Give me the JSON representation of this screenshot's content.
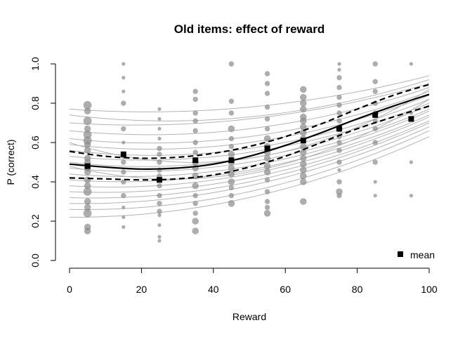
{
  "chart_data": {
    "type": "scatter",
    "title": "Old items: effect of reward",
    "xlabel": "Reward",
    "ylabel": "P (correct)",
    "xlim": [
      0,
      100
    ],
    "ylim": [
      0,
      1
    ],
    "xticks": [
      0,
      20,
      40,
      60,
      80,
      100
    ],
    "yticks": [
      0.0,
      0.2,
      0.4,
      0.6,
      0.8,
      1.0
    ],
    "ytick_labels": [
      "0.0",
      "0.2",
      "0.4",
      "0.6",
      "0.8",
      "1.0"
    ],
    "grid": false,
    "legend": {
      "position": "bottom-right",
      "entries": [
        {
          "label": "mean",
          "marker": "filled-square"
        }
      ]
    },
    "colors": {
      "points": "#8a8a8a",
      "subject_curves": "#b3b3b3",
      "fit": "#000000"
    },
    "means": {
      "x": [
        5,
        15,
        25,
        35,
        45,
        55,
        65,
        75,
        85,
        95
      ],
      "y": [
        0.48,
        0.54,
        0.41,
        0.51,
        0.51,
        0.57,
        0.61,
        0.67,
        0.74,
        0.72
      ]
    },
    "fit": {
      "x": [
        0,
        10,
        20,
        30,
        40,
        50,
        60,
        70,
        80,
        90,
        100
      ],
      "y": [
        0.49,
        0.475,
        0.465,
        0.47,
        0.49,
        0.53,
        0.585,
        0.65,
        0.72,
        0.785,
        0.845
      ]
    },
    "fit_upper": {
      "x": [
        0,
        10,
        20,
        30,
        40,
        50,
        60,
        70,
        80,
        90,
        100
      ],
      "y": [
        0.555,
        0.53,
        0.52,
        0.525,
        0.545,
        0.58,
        0.63,
        0.695,
        0.77,
        0.84,
        0.895
      ]
    },
    "fit_lower": {
      "x": [
        0,
        10,
        20,
        30,
        40,
        50,
        60,
        70,
        80,
        90,
        100
      ],
      "y": [
        0.42,
        0.415,
        0.41,
        0.415,
        0.435,
        0.475,
        0.53,
        0.6,
        0.67,
        0.73,
        0.785
      ]
    },
    "subject_curves": [
      {
        "x": [
          0,
          50,
          100
        ],
        "y": [
          0.77,
          0.78,
          0.94
        ]
      },
      {
        "x": [
          0,
          50,
          100
        ],
        "y": [
          0.74,
          0.73,
          0.92
        ]
      },
      {
        "x": [
          0,
          50,
          100
        ],
        "y": [
          0.7,
          0.72,
          0.9
        ]
      },
      {
        "x": [
          0,
          50,
          100
        ],
        "y": [
          0.66,
          0.67,
          0.88
        ]
      },
      {
        "x": [
          0,
          50,
          100
        ],
        "y": [
          0.62,
          0.63,
          0.86
        ]
      },
      {
        "x": [
          0,
          50,
          100
        ],
        "y": [
          0.59,
          0.6,
          0.84
        ]
      },
      {
        "x": [
          0,
          50,
          100
        ],
        "y": [
          0.56,
          0.57,
          0.82
        ]
      },
      {
        "x": [
          0,
          50,
          100
        ],
        "y": [
          0.53,
          0.55,
          0.8
        ]
      },
      {
        "x": [
          0,
          50,
          100
        ],
        "y": [
          0.5,
          0.52,
          0.79
        ]
      },
      {
        "x": [
          0,
          50,
          100
        ],
        "y": [
          0.47,
          0.5,
          0.77
        ]
      },
      {
        "x": [
          0,
          50,
          100
        ],
        "y": [
          0.44,
          0.48,
          0.76
        ]
      },
      {
        "x": [
          0,
          50,
          100
        ],
        "y": [
          0.41,
          0.46,
          0.74
        ]
      },
      {
        "x": [
          0,
          50,
          100
        ],
        "y": [
          0.38,
          0.44,
          0.73
        ]
      },
      {
        "x": [
          0,
          50,
          100
        ],
        "y": [
          0.35,
          0.42,
          0.71
        ]
      },
      {
        "x": [
          0,
          50,
          100
        ],
        "y": [
          0.32,
          0.4,
          0.7
        ]
      },
      {
        "x": [
          0,
          50,
          100
        ],
        "y": [
          0.29,
          0.38,
          0.68
        ]
      },
      {
        "x": [
          0,
          50,
          100
        ],
        "y": [
          0.26,
          0.35,
          0.66
        ]
      },
      {
        "x": [
          0,
          50,
          100
        ],
        "y": [
          0.22,
          0.32,
          0.63
        ]
      },
      {
        "x": [
          0,
          50,
          100
        ],
        "y": [
          0.48,
          0.45,
          0.82
        ]
      },
      {
        "x": [
          0,
          50,
          100
        ],
        "y": [
          0.6,
          0.52,
          0.87
        ]
      }
    ],
    "points": [
      {
        "x": 5,
        "y": 0.79,
        "n": 4
      },
      {
        "x": 5,
        "y": 0.76,
        "n": 3
      },
      {
        "x": 5,
        "y": 0.71,
        "n": 4
      },
      {
        "x": 5,
        "y": 0.67,
        "n": 3
      },
      {
        "x": 5,
        "y": 0.64,
        "n": 4
      },
      {
        "x": 5,
        "y": 0.61,
        "n": 4
      },
      {
        "x": 5,
        "y": 0.59,
        "n": 3
      },
      {
        "x": 5,
        "y": 0.56,
        "n": 3
      },
      {
        "x": 5,
        "y": 0.52,
        "n": 3
      },
      {
        "x": 5,
        "y": 0.5,
        "n": 3
      },
      {
        "x": 5,
        "y": 0.47,
        "n": 3
      },
      {
        "x": 5,
        "y": 0.45,
        "n": 3
      },
      {
        "x": 5,
        "y": 0.41,
        "n": 3
      },
      {
        "x": 5,
        "y": 0.38,
        "n": 3
      },
      {
        "x": 5,
        "y": 0.35,
        "n": 4
      },
      {
        "x": 5,
        "y": 0.3,
        "n": 3
      },
      {
        "x": 5,
        "y": 0.27,
        "n": 3
      },
      {
        "x": 5,
        "y": 0.24,
        "n": 4
      },
      {
        "x": 5,
        "y": 0.17,
        "n": 3
      },
      {
        "x": 5,
        "y": 0.15,
        "n": 3
      },
      {
        "x": 15,
        "y": 1.0,
        "n": 1
      },
      {
        "x": 15,
        "y": 0.93,
        "n": 1
      },
      {
        "x": 15,
        "y": 0.86,
        "n": 1
      },
      {
        "x": 15,
        "y": 0.8,
        "n": 2
      },
      {
        "x": 15,
        "y": 0.67,
        "n": 2
      },
      {
        "x": 15,
        "y": 0.6,
        "n": 1
      },
      {
        "x": 15,
        "y": 0.53,
        "n": 2
      },
      {
        "x": 15,
        "y": 0.5,
        "n": 2
      },
      {
        "x": 15,
        "y": 0.45,
        "n": 2
      },
      {
        "x": 15,
        "y": 0.4,
        "n": 2
      },
      {
        "x": 15,
        "y": 0.33,
        "n": 2
      },
      {
        "x": 15,
        "y": 0.27,
        "n": 1
      },
      {
        "x": 15,
        "y": 0.22,
        "n": 1
      },
      {
        "x": 15,
        "y": 0.17,
        "n": 1
      },
      {
        "x": 25,
        "y": 0.77,
        "n": 1
      },
      {
        "x": 25,
        "y": 0.72,
        "n": 1
      },
      {
        "x": 25,
        "y": 0.67,
        "n": 1
      },
      {
        "x": 25,
        "y": 0.62,
        "n": 1
      },
      {
        "x": 25,
        "y": 0.57,
        "n": 2
      },
      {
        "x": 25,
        "y": 0.54,
        "n": 2
      },
      {
        "x": 25,
        "y": 0.5,
        "n": 2
      },
      {
        "x": 25,
        "y": 0.46,
        "n": 2
      },
      {
        "x": 25,
        "y": 0.43,
        "n": 2
      },
      {
        "x": 25,
        "y": 0.38,
        "n": 2
      },
      {
        "x": 25,
        "y": 0.33,
        "n": 2
      },
      {
        "x": 25,
        "y": 0.29,
        "n": 2
      },
      {
        "x": 25,
        "y": 0.25,
        "n": 2
      },
      {
        "x": 25,
        "y": 0.23,
        "n": 1
      },
      {
        "x": 25,
        "y": 0.18,
        "n": 1
      },
      {
        "x": 25,
        "y": 0.12,
        "n": 1
      },
      {
        "x": 25,
        "y": 0.1,
        "n": 1
      },
      {
        "x": 35,
        "y": 0.86,
        "n": 2
      },
      {
        "x": 35,
        "y": 0.82,
        "n": 2
      },
      {
        "x": 35,
        "y": 0.75,
        "n": 2
      },
      {
        "x": 35,
        "y": 0.71,
        "n": 2
      },
      {
        "x": 35,
        "y": 0.66,
        "n": 2
      },
      {
        "x": 35,
        "y": 0.6,
        "n": 2
      },
      {
        "x": 35,
        "y": 0.55,
        "n": 2
      },
      {
        "x": 35,
        "y": 0.5,
        "n": 3
      },
      {
        "x": 35,
        "y": 0.47,
        "n": 3
      },
      {
        "x": 35,
        "y": 0.43,
        "n": 3
      },
      {
        "x": 35,
        "y": 0.38,
        "n": 3
      },
      {
        "x": 35,
        "y": 0.33,
        "n": 2
      },
      {
        "x": 35,
        "y": 0.29,
        "n": 2
      },
      {
        "x": 35,
        "y": 0.24,
        "n": 2
      },
      {
        "x": 35,
        "y": 0.2,
        "n": 3
      },
      {
        "x": 35,
        "y": 0.15,
        "n": 3
      },
      {
        "x": 45,
        "y": 1.0,
        "n": 2
      },
      {
        "x": 45,
        "y": 0.81,
        "n": 2
      },
      {
        "x": 45,
        "y": 0.75,
        "n": 2
      },
      {
        "x": 45,
        "y": 0.67,
        "n": 3
      },
      {
        "x": 45,
        "y": 0.62,
        "n": 2
      },
      {
        "x": 45,
        "y": 0.58,
        "n": 2
      },
      {
        "x": 45,
        "y": 0.54,
        "n": 3
      },
      {
        "x": 45,
        "y": 0.5,
        "n": 3
      },
      {
        "x": 45,
        "y": 0.47,
        "n": 3
      },
      {
        "x": 45,
        "y": 0.44,
        "n": 3
      },
      {
        "x": 45,
        "y": 0.4,
        "n": 3
      },
      {
        "x": 45,
        "y": 0.37,
        "n": 2
      },
      {
        "x": 45,
        "y": 0.33,
        "n": 2
      },
      {
        "x": 45,
        "y": 0.29,
        "n": 3
      },
      {
        "x": 55,
        "y": 0.95,
        "n": 2
      },
      {
        "x": 55,
        "y": 0.9,
        "n": 2
      },
      {
        "x": 55,
        "y": 0.85,
        "n": 2
      },
      {
        "x": 55,
        "y": 0.78,
        "n": 2
      },
      {
        "x": 55,
        "y": 0.72,
        "n": 2
      },
      {
        "x": 55,
        "y": 0.67,
        "n": 2
      },
      {
        "x": 55,
        "y": 0.62,
        "n": 3
      },
      {
        "x": 55,
        "y": 0.58,
        "n": 3
      },
      {
        "x": 55,
        "y": 0.55,
        "n": 3
      },
      {
        "x": 55,
        "y": 0.52,
        "n": 3
      },
      {
        "x": 55,
        "y": 0.48,
        "n": 3
      },
      {
        "x": 55,
        "y": 0.45,
        "n": 3
      },
      {
        "x": 55,
        "y": 0.41,
        "n": 2
      },
      {
        "x": 55,
        "y": 0.35,
        "n": 2
      },
      {
        "x": 55,
        "y": 0.3,
        "n": 2
      },
      {
        "x": 55,
        "y": 0.27,
        "n": 2
      },
      {
        "x": 55,
        "y": 0.24,
        "n": 3
      },
      {
        "x": 65,
        "y": 0.87,
        "n": 3
      },
      {
        "x": 65,
        "y": 0.83,
        "n": 3
      },
      {
        "x": 65,
        "y": 0.8,
        "n": 3
      },
      {
        "x": 65,
        "y": 0.77,
        "n": 3
      },
      {
        "x": 65,
        "y": 0.73,
        "n": 3
      },
      {
        "x": 65,
        "y": 0.71,
        "n": 3
      },
      {
        "x": 65,
        "y": 0.68,
        "n": 3
      },
      {
        "x": 65,
        "y": 0.65,
        "n": 3
      },
      {
        "x": 65,
        "y": 0.62,
        "n": 3
      },
      {
        "x": 65,
        "y": 0.58,
        "n": 3
      },
      {
        "x": 65,
        "y": 0.55,
        "n": 3
      },
      {
        "x": 65,
        "y": 0.52,
        "n": 3
      },
      {
        "x": 65,
        "y": 0.49,
        "n": 3
      },
      {
        "x": 65,
        "y": 0.46,
        "n": 3
      },
      {
        "x": 65,
        "y": 0.43,
        "n": 3
      },
      {
        "x": 65,
        "y": 0.4,
        "n": 3
      },
      {
        "x": 65,
        "y": 0.3,
        "n": 3
      },
      {
        "x": 75,
        "y": 1.0,
        "n": 1
      },
      {
        "x": 75,
        "y": 0.97,
        "n": 1
      },
      {
        "x": 75,
        "y": 0.93,
        "n": 2
      },
      {
        "x": 75,
        "y": 0.88,
        "n": 2
      },
      {
        "x": 75,
        "y": 0.83,
        "n": 2
      },
      {
        "x": 75,
        "y": 0.79,
        "n": 2
      },
      {
        "x": 75,
        "y": 0.75,
        "n": 2
      },
      {
        "x": 75,
        "y": 0.71,
        "n": 2
      },
      {
        "x": 75,
        "y": 0.67,
        "n": 3
      },
      {
        "x": 75,
        "y": 0.63,
        "n": 2
      },
      {
        "x": 75,
        "y": 0.6,
        "n": 2
      },
      {
        "x": 75,
        "y": 0.56,
        "n": 2
      },
      {
        "x": 75,
        "y": 0.5,
        "n": 2
      },
      {
        "x": 75,
        "y": 0.46,
        "n": 1
      },
      {
        "x": 75,
        "y": 0.4,
        "n": 2
      },
      {
        "x": 75,
        "y": 0.35,
        "n": 3
      },
      {
        "x": 75,
        "y": 0.33,
        "n": 2
      },
      {
        "x": 85,
        "y": 1.0,
        "n": 2
      },
      {
        "x": 85,
        "y": 0.91,
        "n": 2
      },
      {
        "x": 85,
        "y": 0.86,
        "n": 2
      },
      {
        "x": 85,
        "y": 0.8,
        "n": 2
      },
      {
        "x": 85,
        "y": 0.75,
        "n": 2
      },
      {
        "x": 85,
        "y": 0.71,
        "n": 2
      },
      {
        "x": 85,
        "y": 0.67,
        "n": 2
      },
      {
        "x": 85,
        "y": 0.6,
        "n": 2
      },
      {
        "x": 85,
        "y": 0.5,
        "n": 2
      },
      {
        "x": 85,
        "y": 0.4,
        "n": 1
      },
      {
        "x": 85,
        "y": 0.33,
        "n": 1
      },
      {
        "x": 95,
        "y": 1.0,
        "n": 1
      },
      {
        "x": 95,
        "y": 0.75,
        "n": 1
      },
      {
        "x": 95,
        "y": 0.5,
        "n": 1
      },
      {
        "x": 95,
        "y": 0.33,
        "n": 1
      }
    ]
  }
}
